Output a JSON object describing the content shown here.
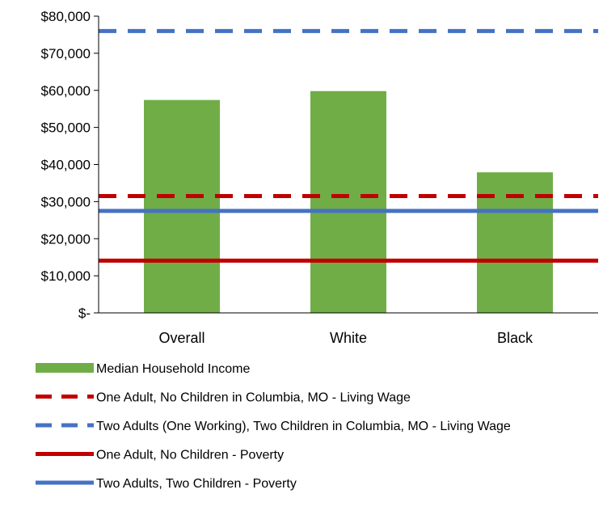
{
  "chart_data": {
    "type": "bar",
    "categories": [
      "Overall",
      "White",
      "Black"
    ],
    "series": [
      {
        "name": "Median Household Income",
        "kind": "bar",
        "values": [
          57400,
          59800,
          37900
        ],
        "color": "#70ad47"
      }
    ],
    "reference_lines": [
      {
        "name": "One Adult, No Children in Columbia, MO - Living Wage",
        "value": 31500,
        "color": "#c00000",
        "style": "dashed"
      },
      {
        "name": "Two Adults (One Working), Two Children in Columbia, MO - Living Wage",
        "value": 76000,
        "color": "#4472c4",
        "style": "dashed"
      },
      {
        "name": "One Adult, No Children - Poverty",
        "value": 14100,
        "color": "#c00000",
        "style": "solid"
      },
      {
        "name": "Two Adults, Two Children - Poverty",
        "value": 27500,
        "color": "#4472c4",
        "style": "solid"
      }
    ],
    "y_ticks": [
      0,
      10000,
      20000,
      30000,
      40000,
      50000,
      60000,
      70000,
      80000
    ],
    "y_tick_labels": [
      "$-",
      "$10,000",
      "$20,000",
      "$30,000",
      "$40,000",
      "$50,000",
      "$60,000",
      "$70,000",
      "$80,000"
    ],
    "ylim": [
      0,
      80000
    ],
    "grid": false,
    "legend_position": "bottom",
    "title": "",
    "xlabel": "",
    "ylabel": ""
  }
}
